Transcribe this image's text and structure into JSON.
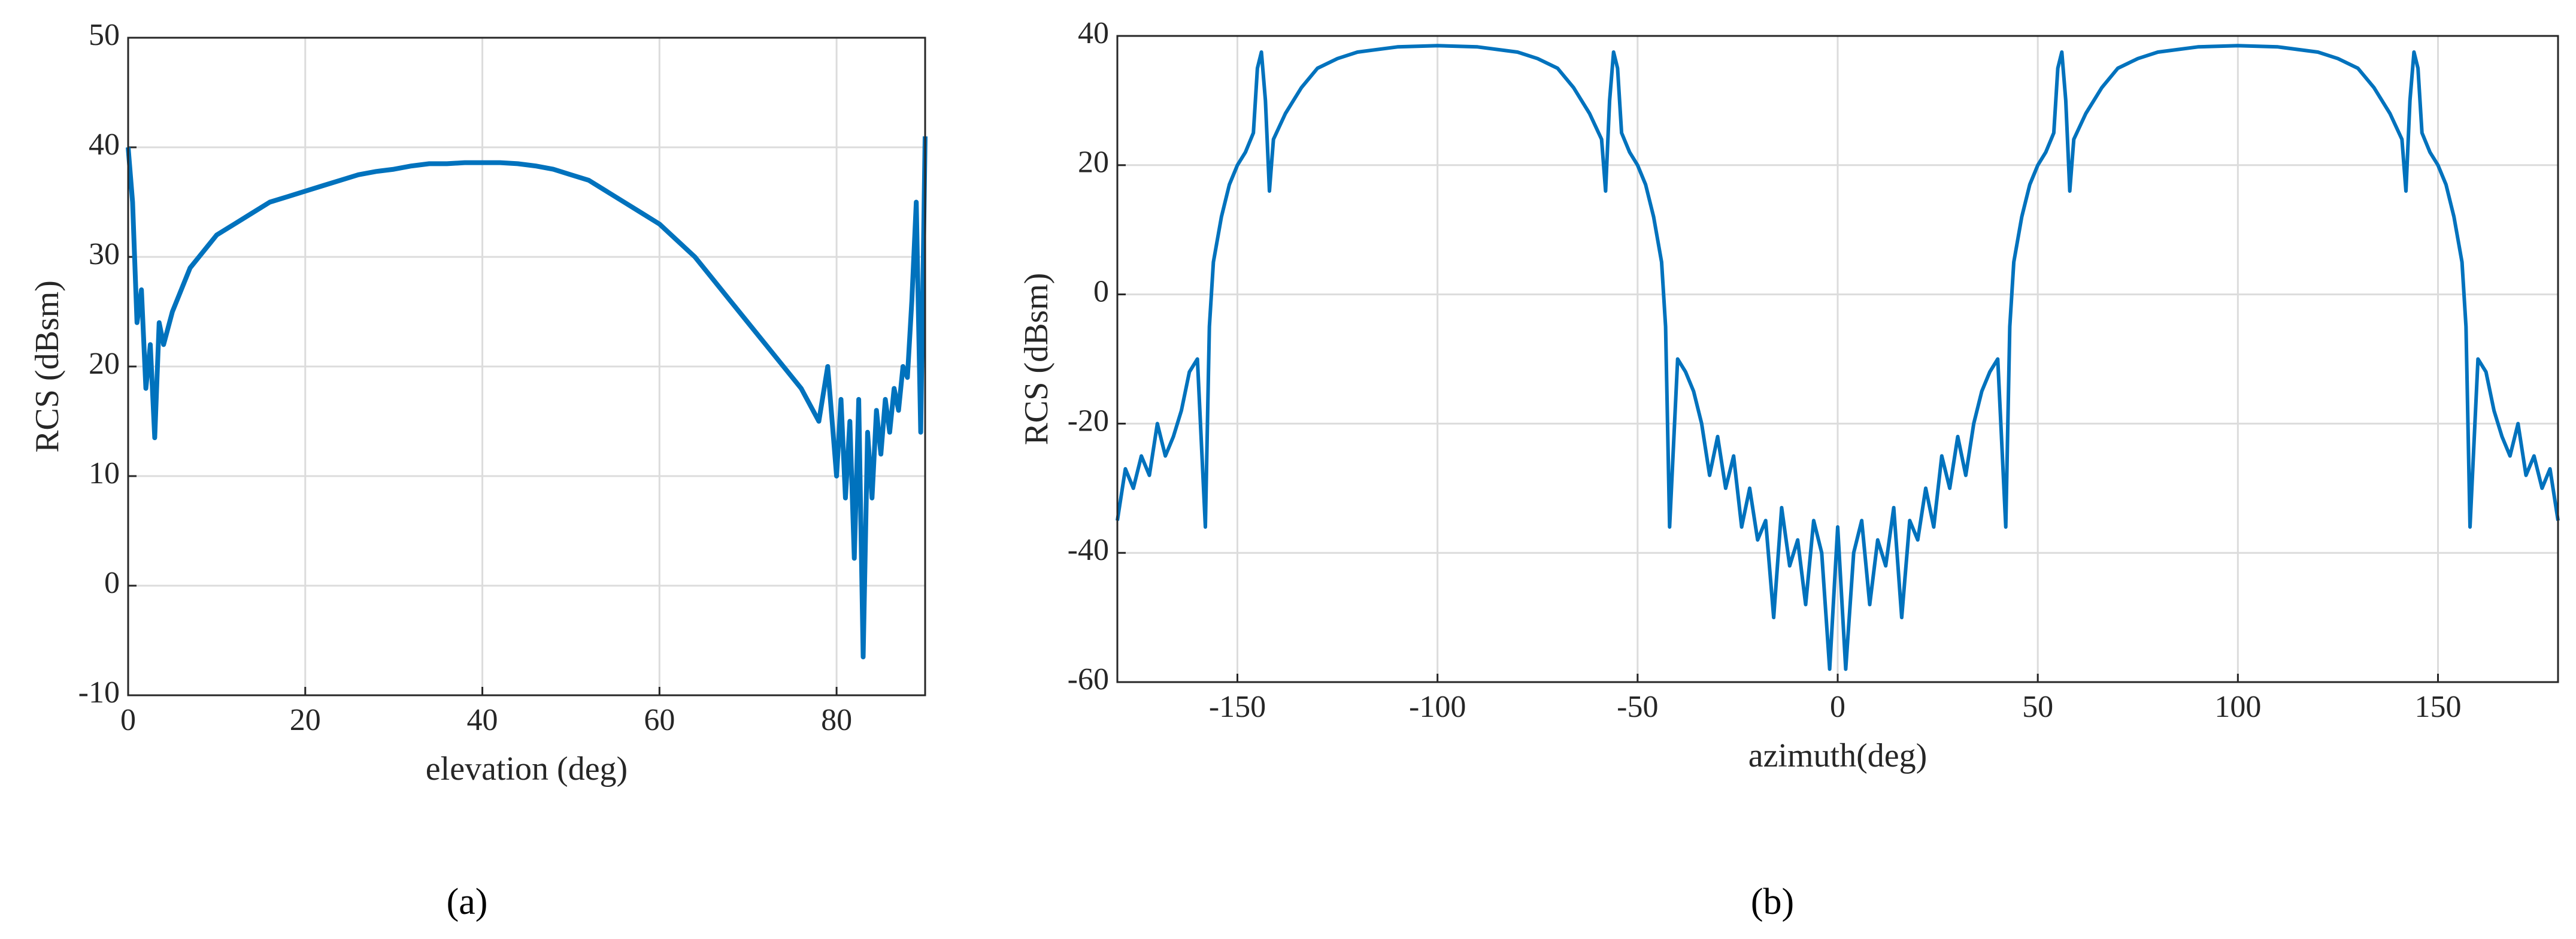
{
  "chart_data": [
    {
      "type": "line",
      "caption": "(a)",
      "x_label": "elevation (deg)",
      "y_label": "RCS (dBsm)",
      "color": "#0072bd",
      "grid": true,
      "xlim": [
        0,
        90
      ],
      "xticks": [
        0,
        20,
        40,
        60,
        80
      ],
      "ylim": [
        -10,
        50
      ],
      "yticks": [
        -10,
        0,
        10,
        20,
        30,
        40,
        50
      ],
      "x": [
        0,
        0.5,
        1,
        1.5,
        2,
        2.5,
        3,
        3.5,
        4,
        5,
        6,
        7,
        8,
        9,
        10,
        12,
        14,
        16,
        18,
        20,
        22,
        24,
        26,
        28,
        30,
        32,
        34,
        36,
        38,
        40,
        42,
        44,
        46,
        48,
        50,
        52,
        54,
        56,
        58,
        60,
        62,
        64,
        66,
        68,
        70,
        72,
        74,
        76,
        78,
        79,
        80,
        80.5,
        81,
        81.5,
        82,
        82.5,
        83,
        83.5,
        84,
        84.5,
        85,
        85.5,
        86,
        86.5,
        87,
        87.5,
        88,
        88.5,
        89,
        89.5,
        90
      ],
      "values": [
        40,
        35,
        24,
        27,
        18,
        22,
        13.5,
        24,
        22,
        25,
        27,
        29,
        30,
        31,
        32,
        33,
        34,
        35,
        35.5,
        36,
        36.5,
        37,
        37.5,
        37.8,
        38,
        38.3,
        38.5,
        38.5,
        38.6,
        38.6,
        38.6,
        38.5,
        38.3,
        38,
        37.5,
        37,
        36,
        35,
        34,
        33,
        31.5,
        30,
        28,
        26,
        24,
        22,
        20,
        18,
        15,
        20,
        10,
        17,
        8,
        15,
        2.5,
        17,
        -6.5,
        14,
        8,
        16,
        12,
        17,
        14,
        18,
        16,
        20,
        19,
        26,
        35,
        14,
        41
      ]
    },
    {
      "type": "line",
      "caption": "(b)",
      "x_label": "azimuth(deg)",
      "y_label": "RCS (dBsm)",
      "color": "#0072bd",
      "grid": true,
      "xlim": [
        -180,
        180
      ],
      "xticks": [
        -150,
        -100,
        -50,
        0,
        50,
        100,
        150
      ],
      "ylim": [
        -60,
        40
      ],
      "yticks": [
        -60,
        -40,
        -20,
        0,
        20,
        40
      ],
      "x": [
        -180,
        -178,
        -176,
        -174,
        -172,
        -170,
        -168,
        -166,
        -164,
        -162,
        -160,
        -158,
        -157,
        -156,
        -154,
        -152,
        -150,
        -148,
        -146,
        -145,
        -144,
        -143,
        -142,
        -141,
        -138,
        -134,
        -130,
        -125,
        -120,
        -110,
        -100,
        -90,
        -80,
        -75,
        -70,
        -66,
        -62,
        -59,
        -58,
        -57,
        -56,
        -55,
        -54,
        -52,
        -50,
        -48,
        -46,
        -44,
        -43,
        -42,
        -40,
        -38,
        -36,
        -34,
        -32,
        -30,
        -28,
        -26,
        -24,
        -22,
        -20,
        -18,
        -16,
        -14,
        -12,
        -10,
        -8,
        -6,
        -4,
        -2,
        0,
        2,
        4,
        6,
        8,
        10,
        12,
        14,
        16,
        18,
        20,
        22,
        24,
        26,
        28,
        30,
        32,
        34,
        36,
        38,
        40,
        42,
        43,
        44,
        46,
        48,
        50,
        52,
        54,
        55,
        56,
        57,
        58,
        59,
        62,
        66,
        70,
        75,
        80,
        90,
        100,
        110,
        120,
        125,
        130,
        134,
        138,
        141,
        142,
        143,
        144,
        145,
        146,
        148,
        150,
        152,
        154,
        156,
        157,
        158,
        160,
        162,
        164,
        166,
        168,
        170,
        172,
        174,
        176,
        178,
        180
      ],
      "values": [
        -35,
        -27,
        -30,
        -25,
        -28,
        -20,
        -25,
        -22,
        -18,
        -12,
        -10,
        -36,
        -5,
        5,
        12,
        17,
        20,
        22,
        25,
        35,
        37.5,
        30,
        16,
        24,
        28,
        32,
        35,
        36.5,
        37.5,
        38.3,
        38.5,
        38.3,
        37.5,
        36.5,
        35,
        32,
        28,
        24,
        16,
        30,
        37.5,
        35,
        25,
        22,
        20,
        17,
        12,
        5,
        -5,
        -36,
        -10,
        -12,
        -15,
        -20,
        -28,
        -22,
        -30,
        -25,
        -36,
        -30,
        -38,
        -35,
        -50,
        -33,
        -42,
        -38,
        -48,
        -35,
        -40,
        -58,
        -36,
        -58,
        -40,
        -35,
        -48,
        -38,
        -42,
        -33,
        -50,
        -35,
        -38,
        -30,
        -36,
        -25,
        -30,
        -22,
        -28,
        -20,
        -15,
        -12,
        -10,
        -36,
        -5,
        5,
        12,
        17,
        20,
        22,
        25,
        35,
        37.5,
        30,
        16,
        24,
        28,
        32,
        35,
        36.5,
        37.5,
        38.3,
        38.5,
        38.3,
        37.5,
        36.5,
        35,
        32,
        28,
        24,
        16,
        30,
        37.5,
        35,
        25,
        22,
        20,
        17,
        12,
        5,
        -5,
        -36,
        -10,
        -12,
        -18,
        -22,
        -25,
        -20,
        -28,
        -25,
        -30,
        -27,
        -35
      ]
    }
  ]
}
